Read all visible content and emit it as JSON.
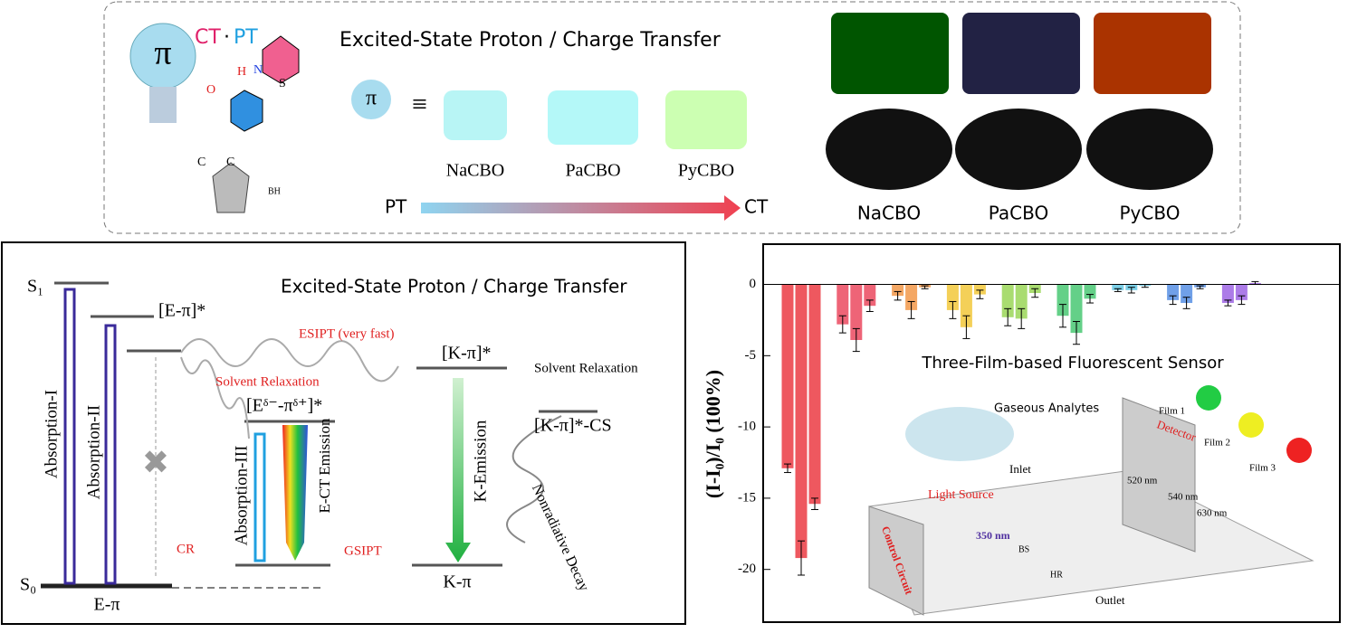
{
  "top_panel": {
    "title": "Excited-State Proton / Charge Transfer",
    "ct": "CT",
    "dot": "·",
    "pt": "PT",
    "pi": "π",
    "atoms": {
      "h": "H",
      "n": "N",
      "o": "O",
      "s": "S",
      "c1": "C",
      "c2": "C",
      "bh": "BH"
    },
    "molecules": [
      "NaCBO",
      "PaCBO",
      "PyCBO"
    ],
    "arrow_start": "PT",
    "arrow_end": "CT",
    "photo_labels": [
      "NaCBO",
      "PaCBO",
      "PyCBO"
    ]
  },
  "jablonski": {
    "title": "Excited-State Proton / Charge Transfer",
    "s1": "S₁",
    "s0": "S₀",
    "e_pi_star": "[E-π]*",
    "esipt": "ESIPT (very fast)",
    "k_pi_star": "[K-π]*",
    "solvent_relaxation_red": "Solvent Relaxation",
    "solvent_relaxation": "Solvent Relaxation",
    "ect_state": "[Eᵟ⁻-πᵟ⁺]*",
    "k_cs": "[K-π]*-CS",
    "absorption_1": "Absorption-I",
    "absorption_2": "Absorption-II",
    "absorption_3": "Absorption-III",
    "ect_emission": "E-CT Emission",
    "k_emission": "K-Emission",
    "nonradiative": "Nonradiative Decay",
    "cr": "CR",
    "gsipt": "GSIPT",
    "e_pi": "E-π",
    "k_pi": "K-π"
  },
  "sensor_chart": {
    "type": "bar",
    "ylabel": "(I-I₀)/I₀ (100%)",
    "ylim": [
      -23.7,
      2.7
    ],
    "yticks": [
      0,
      -5,
      -10,
      -15,
      -20
    ],
    "groups": [
      {
        "color": "#e8202a",
        "values": [
          -12.9,
          -19.2,
          -15.4
        ],
        "errors": [
          0.3,
          1.2,
          0.4
        ]
      },
      {
        "color": "#e8304a",
        "values": [
          -2.8,
          -3.9,
          -1.5
        ],
        "errors": [
          0.6,
          0.8,
          0.4
        ]
      },
      {
        "color": "#f08a30",
        "values": [
          -0.8,
          -1.8,
          -0.2
        ],
        "errors": [
          0.3,
          0.6,
          0.1
        ]
      },
      {
        "color": "#f0c020",
        "values": [
          -1.8,
          -3.0,
          -0.7
        ],
        "errors": [
          0.6,
          0.8,
          0.3
        ]
      },
      {
        "color": "#8cd040",
        "values": [
          -2.3,
          -2.4,
          -0.6
        ],
        "errors": [
          0.6,
          0.7,
          0.3
        ]
      },
      {
        "color": "#30c060",
        "values": [
          -2.2,
          -3.4,
          -1.0
        ],
        "errors": [
          0.8,
          0.8,
          0.3
        ]
      },
      {
        "color": "#50c0e0",
        "values": [
          -0.4,
          -0.4,
          -0.1
        ],
        "errors": [
          0.1,
          0.2,
          0.1
        ]
      },
      {
        "color": "#4080e0",
        "values": [
          -1.1,
          -1.3,
          -0.2
        ],
        "errors": [
          0.3,
          0.4,
          0.1
        ]
      },
      {
        "color": "#9050e0",
        "values": [
          -1.3,
          -1.1,
          0.1
        ],
        "errors": [
          0.2,
          0.3,
          0.1
        ]
      }
    ],
    "inset": {
      "title": "Three-Film-based Fluorescent Sensor",
      "analytes": "Gaseous Analytes",
      "detector": "Detector",
      "films": [
        "Film 1",
        "Film 2",
        "Film 3"
      ],
      "wavelengths": [
        "520 nm",
        "540 nm",
        "630 nm"
      ],
      "inlet": "Inlet",
      "light_source": "Light Source",
      "excitation": "350 nm",
      "bs": "BS",
      "hr": "HR",
      "outlet": "Outlet",
      "control": "Control Circuit"
    }
  }
}
